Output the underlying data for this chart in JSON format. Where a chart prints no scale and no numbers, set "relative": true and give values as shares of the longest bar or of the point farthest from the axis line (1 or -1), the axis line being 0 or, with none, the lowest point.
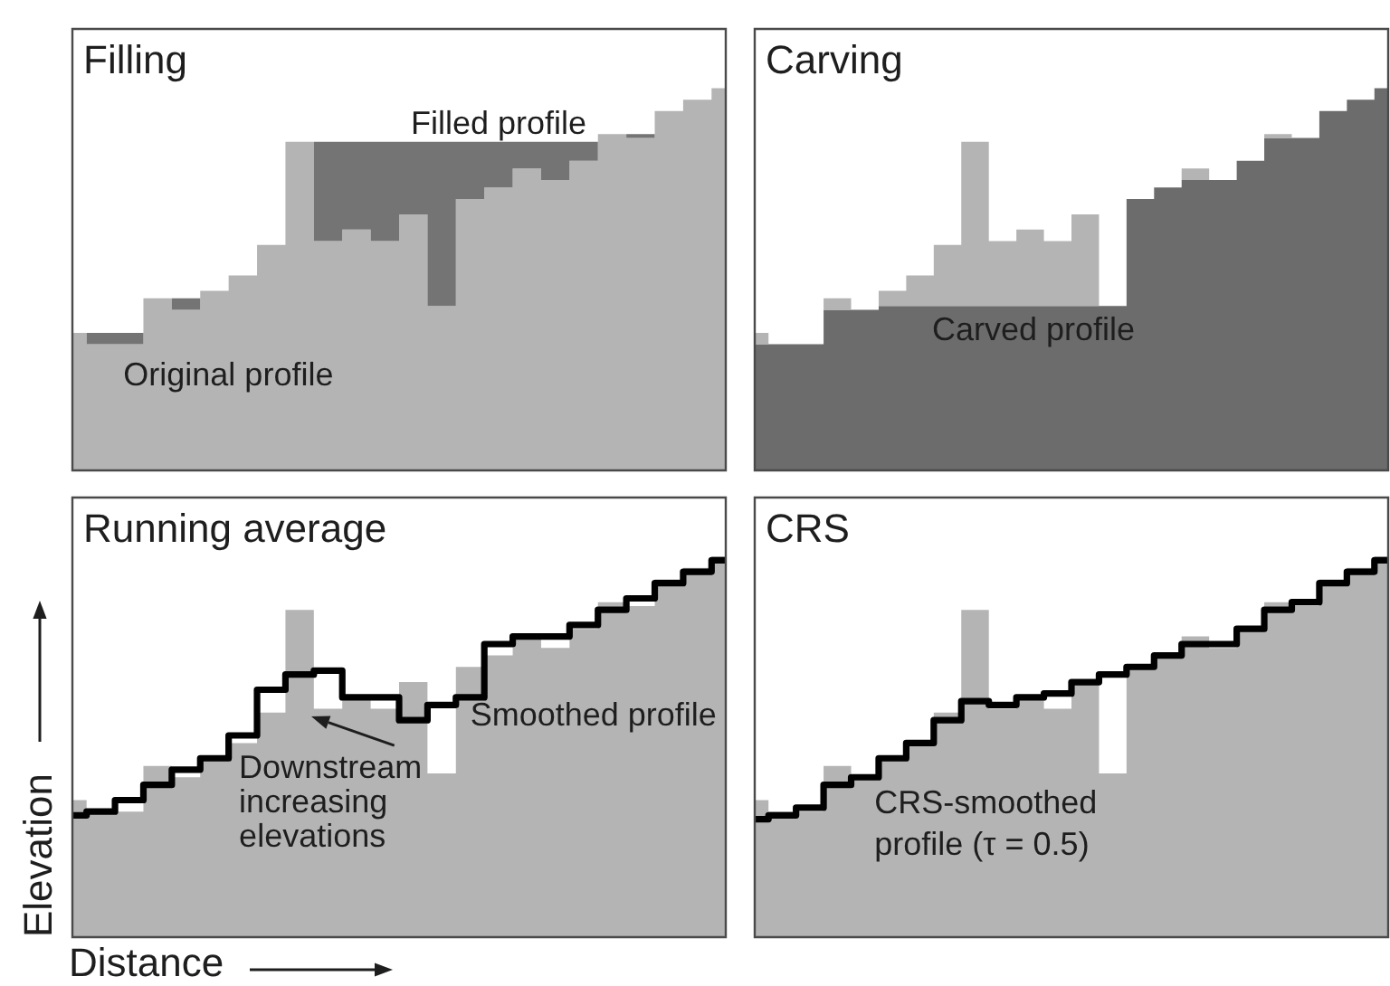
{
  "chart_data": [
    {
      "type": "step",
      "title": "Filling",
      "stacked": true,
      "categories": [
        null,
        null,
        null,
        null,
        null,
        null,
        null,
        null,
        null,
        null,
        null,
        null,
        null,
        null,
        null,
        null,
        null,
        null,
        null,
        null,
        null,
        null,
        null,
        null
      ],
      "relative": true,
      "series": [
        {
          "name": "Original profile",
          "type": "area",
          "color": "#b4b4b4",
          "values": [
            0.36,
            0.33,
            0.33,
            0.45,
            0.42,
            0.47,
            0.51,
            0.59,
            0.86,
            0.6,
            0.63,
            0.6,
            0.67,
            0.43,
            0.71,
            0.74,
            0.79,
            0.76,
            0.81,
            0.88,
            0.87,
            0.94,
            0.97,
            1
          ]
        },
        {
          "name": "Filled profile",
          "type": "area",
          "color": "#747474",
          "values": [
            0,
            0.03,
            0.03,
            0,
            0.03,
            0,
            0,
            0,
            0,
            0.26,
            0.23,
            0.26,
            0.19,
            0.43,
            0.15,
            0.12,
            0.07,
            0.1,
            0.05,
            0,
            0.01,
            0,
            0,
            0
          ]
        }
      ]
    },
    {
      "type": "step",
      "title": "Carving",
      "stacked": true,
      "categories": [
        null,
        null,
        null,
        null,
        null,
        null,
        null,
        null,
        null,
        null,
        null,
        null,
        null,
        null,
        null,
        null,
        null,
        null,
        null,
        null,
        null,
        null,
        null,
        null
      ],
      "relative": true,
      "series": [
        {
          "name": "Carved profile",
          "type": "area",
          "color": "#6c6c6c",
          "values": [
            0.33,
            0.33,
            0.33,
            0.42,
            0.42,
            0.43,
            0.43,
            0.43,
            0.43,
            0.43,
            0.43,
            0.43,
            0.43,
            0.43,
            0.71,
            0.74,
            0.76,
            0.76,
            0.81,
            0.87,
            0.87,
            0.94,
            0.97,
            1
          ]
        },
        {
          "type": "area",
          "color": "#b4b4b4",
          "values": [
            0.03,
            0,
            0,
            0.03,
            0,
            0.04,
            0.08,
            0.16,
            0.43,
            0.17,
            0.2,
            0.17,
            0.24,
            0,
            0,
            0,
            0.03,
            0,
            0,
            0.01,
            0,
            0,
            0,
            0
          ]
        }
      ]
    },
    {
      "type": "step",
      "title": "Running average",
      "xlabel": "Distance",
      "ylabel": "Elevation",
      "annotations": [
        "Downstream increasing elevations"
      ],
      "categories": [
        null,
        null,
        null,
        null,
        null,
        null,
        null,
        null,
        null,
        null,
        null,
        null,
        null,
        null,
        null,
        null,
        null,
        null,
        null,
        null,
        null,
        null,
        null,
        null
      ],
      "relative": true,
      "series": [
        {
          "type": "area",
          "color": "#b4b4b4",
          "values": [
            0.36,
            0.33,
            0.33,
            0.45,
            0.42,
            0.47,
            0.51,
            0.59,
            0.86,
            0.6,
            0.63,
            0.6,
            0.67,
            0.43,
            0.71,
            0.74,
            0.79,
            0.76,
            0.81,
            0.88,
            0.87,
            0.94,
            0.97,
            1
          ]
        },
        {
          "name": "Smoothed profile",
          "type": "step",
          "color": "#000000",
          "values": [
            0.32,
            0.33,
            0.36,
            0.4,
            0.44,
            0.47,
            0.53,
            0.65,
            0.69,
            0.7,
            0.63,
            0.63,
            0.57,
            0.61,
            0.63,
            0.77,
            0.79,
            0.79,
            0.82,
            0.86,
            0.89,
            0.93,
            0.96,
            0.99
          ]
        }
      ]
    },
    {
      "type": "step",
      "title": "CRS",
      "categories": [
        null,
        null,
        null,
        null,
        null,
        null,
        null,
        null,
        null,
        null,
        null,
        null,
        null,
        null,
        null,
        null,
        null,
        null,
        null,
        null,
        null,
        null,
        null,
        null
      ],
      "relative": true,
      "series": [
        {
          "type": "area",
          "color": "#b4b4b4",
          "values": [
            0.36,
            0.33,
            0.33,
            0.45,
            0.42,
            0.47,
            0.51,
            0.59,
            0.86,
            0.6,
            0.63,
            0.6,
            0.67,
            0.43,
            0.71,
            0.74,
            0.79,
            0.76,
            0.81,
            0.88,
            0.87,
            0.94,
            0.97,
            1
          ]
        },
        {
          "name": "CRS-smoothed profile (τ = 0.5)",
          "type": "step",
          "color": "#000000",
          "values": [
            0.31,
            0.32,
            0.34,
            0.4,
            0.42,
            0.47,
            0.51,
            0.57,
            0.62,
            0.61,
            0.63,
            0.64,
            0.67,
            0.69,
            0.71,
            0.74,
            0.77,
            0.77,
            0.81,
            0.86,
            0.88,
            0.93,
            0.96,
            0.99
          ]
        }
      ]
    }
  ]
}
